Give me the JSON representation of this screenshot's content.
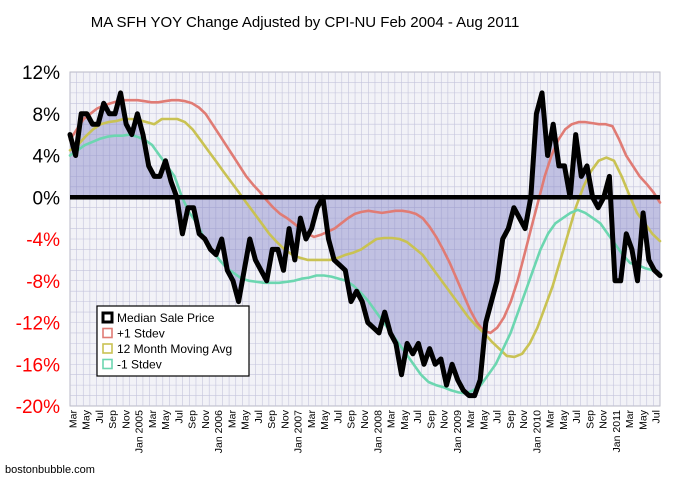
{
  "chart_data": {
    "type": "line",
    "title": "MA SFH YOY Change Adjusted by CPI-NU Feb 2004 - Aug 2011",
    "ylim": [
      -20,
      12
    ],
    "yticks": [
      12,
      8,
      4,
      0,
      -4,
      -8,
      -12,
      -16,
      -20
    ],
    "ytick_labels": [
      "12%",
      "8%",
      "4%",
      "0%",
      "-4%",
      "-8%",
      "-12%",
      "-16%",
      "-20%"
    ],
    "x_start": "Mar 2004",
    "x_end": "Aug 2011",
    "xtick_labels": [
      "Mar",
      "May",
      "Jul",
      "Sep",
      "Nov",
      "Jan 2005",
      "Mar",
      "May",
      "Jul",
      "Sep",
      "Nov",
      "Jan 2006",
      "Mar",
      "May",
      "Jul",
      "Sep",
      "Nov",
      "Jan 2007",
      "Mar",
      "May",
      "Jul",
      "Sep",
      "Nov",
      "Jan 2008",
      "Mar",
      "May",
      "Jul",
      "Sep",
      "Nov",
      "Jan 2009",
      "Mar",
      "May",
      "Jul",
      "Sep",
      "Nov",
      "Jan 2010",
      "Mar",
      "May",
      "Jul",
      "Sep",
      "Nov",
      "Jan 2011",
      "Mar",
      "May",
      "Jul"
    ],
    "grid": true,
    "legend_position": "bottom-left",
    "series": [
      {
        "name": "Median Sale Price",
        "color": "#000000",
        "values": [
          6,
          4,
          8,
          8,
          7,
          7,
          9,
          8,
          8,
          10,
          7,
          6,
          8,
          6,
          3,
          2,
          2,
          3.5,
          1.5,
          0,
          -3.5,
          -1,
          -1,
          -3.5,
          -4,
          -5,
          -5.5,
          -4,
          -7,
          -8,
          -10,
          -7,
          -4,
          -6,
          -7,
          -8,
          -5,
          -5,
          -7,
          -3,
          -6,
          -2,
          -4,
          -3,
          -1,
          0,
          -4,
          -6,
          -6.5,
          -7,
          -10,
          -9,
          -10,
          -12,
          -12.5,
          -13,
          -11,
          -13,
          -14,
          -17,
          -14,
          -15,
          -14,
          -16,
          -14.5,
          -16,
          -15.5,
          -18,
          -16,
          -17.5,
          -18.5,
          -19,
          -19,
          -17.5,
          -12,
          -10,
          -8,
          -4,
          -3,
          -1,
          -2,
          -3,
          0,
          8,
          10,
          4,
          7,
          3,
          3,
          0,
          6,
          2,
          3,
          0,
          -1,
          0,
          2,
          -8,
          -8,
          -3.5,
          -5,
          -8,
          -1.5,
          -6,
          -7,
          -7.5
        ]
      },
      {
        "name": "+1 Stdev",
        "color": "#e07b74",
        "values": [
          5.5,
          6.5,
          7.5,
          8,
          8.5,
          8.8,
          9,
          9.2,
          9.3,
          9.3,
          9.3,
          9.2,
          9.1,
          9.1,
          9.2,
          9.3,
          9.3,
          9.2,
          9,
          8.6,
          8,
          7,
          6,
          5,
          4,
          3,
          2,
          1.2,
          0.5,
          -0.3,
          -1,
          -1.6,
          -2,
          -2.5,
          -3,
          -3.5,
          -3.8,
          -3.6,
          -3.3,
          -3,
          -2.5,
          -2,
          -1.6,
          -1.4,
          -1.3,
          -1.4,
          -1.5,
          -1.4,
          -1.3,
          -1.3,
          -1.4,
          -1.6,
          -2,
          -2.8,
          -3.8,
          -5,
          -6.3,
          -7.8,
          -9.3,
          -10.8,
          -12,
          -12.8,
          -13,
          -12.5,
          -11.5,
          -10,
          -8,
          -5.5,
          -3,
          -0.5,
          2,
          4,
          5.5,
          6.5,
          7,
          7.2,
          7.2,
          7.1,
          7,
          7,
          6.8,
          5.5,
          4,
          3,
          2,
          1.3,
          0.5,
          -0.5
        ]
      },
      {
        "name": "12 Month Moving Avg",
        "color": "#c9c253",
        "values": [
          4.5,
          5,
          5.8,
          6.5,
          7,
          7.2,
          7.3,
          7.5,
          7.5,
          7.4,
          7.2,
          7,
          7.5,
          7.5,
          7.5,
          7.2,
          6.5,
          5.5,
          4.5,
          3.5,
          2.5,
          1.5,
          0.5,
          -0.5,
          -1.5,
          -2.5,
          -3.5,
          -4.3,
          -5,
          -5.5,
          -5.8,
          -6,
          -6,
          -6,
          -6,
          -5.8,
          -5.5,
          -5.3,
          -5,
          -4.5,
          -4,
          -3.9,
          -3.9,
          -4,
          -4.3,
          -4.9,
          -5.5,
          -6.5,
          -7.5,
          -8.5,
          -9.5,
          -10.5,
          -11.5,
          -12.3,
          -13,
          -13.8,
          -14.5,
          -15.2,
          -15.3,
          -15,
          -14,
          -12.5,
          -10.5,
          -8.5,
          -6,
          -3.5,
          -1,
          1,
          2.5,
          3.5,
          3.8,
          3.5,
          2,
          0.2,
          -1.5,
          -2.5,
          -3.5,
          -4.2
        ]
      },
      {
        "name": "-1 Stdev",
        "color": "#6cd6b0",
        "values": [
          4,
          4.5,
          5,
          5.3,
          5.6,
          5.8,
          5.9,
          5.9,
          6,
          5.8,
          5.5,
          5,
          4,
          3,
          2,
          0,
          -1.5,
          -2.5,
          -4,
          -5,
          -6,
          -6.8,
          -7.3,
          -7.8,
          -8,
          -8.1,
          -8.2,
          -8.2,
          -8.2,
          -8.1,
          -8,
          -7.8,
          -7.7,
          -7.5,
          -7.5,
          -7.6,
          -7.8,
          -8,
          -8.5,
          -9.2,
          -10,
          -11,
          -12,
          -13,
          -14,
          -15,
          -16,
          -17,
          -17.7,
          -18,
          -18.2,
          -18.5,
          -18.7,
          -18.8,
          -18.5,
          -18,
          -17,
          -16,
          -14.5,
          -13,
          -11,
          -9,
          -7,
          -5,
          -3.5,
          -2.5,
          -2,
          -1.5,
          -1.2,
          -1.5,
          -2,
          -2.5,
          -3.5,
          -4.5,
          -5.5,
          -6.3,
          -6.5,
          -6.8,
          -7,
          -7.3
        ]
      }
    ]
  },
  "credit": "bostonbubble.com"
}
